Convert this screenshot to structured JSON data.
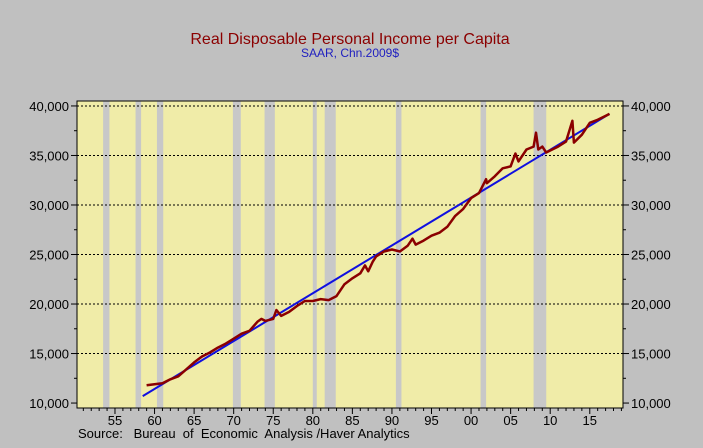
{
  "chart_data": {
    "type": "line",
    "title": "Real Disposable Personal Income per Capita",
    "subtitle": "SAAR, Chn.2009$",
    "source": "Source:   Bureau  of  Economic  Analysis /Haver Analytics",
    "colors": {
      "plot_background": "#f0eca8",
      "page_background": "#c0c0c0",
      "recession_band": "#c8c8c8",
      "income_line": "#8b0000",
      "trend_line": "#1010e0",
      "title": "#8b0000",
      "subtitle": "#2020c0"
    },
    "xlim": [
      1950.2,
      2019.2
    ],
    "ylim": [
      9500,
      40500
    ],
    "x_ticks": [
      1955,
      1960,
      1965,
      1970,
      1975,
      1980,
      1985,
      1990,
      1995,
      2000,
      2005,
      2010,
      2015
    ],
    "x_tick_labels": [
      "55",
      "60",
      "65",
      "70",
      "75",
      "80",
      "85",
      "90",
      "95",
      "00",
      "05",
      "10",
      "15"
    ],
    "y_ticks": [
      10000,
      15000,
      20000,
      25000,
      30000,
      35000,
      40000
    ],
    "y_tick_labels": [
      "10,000",
      "15,000",
      "20,000",
      "25,000",
      "30,000",
      "35,000",
      "40,000"
    ],
    "grid": "horizontal-dashed",
    "legend": "none",
    "recessions": [
      [
        1953.5,
        1954.3
      ],
      [
        1957.6,
        1958.3
      ],
      [
        1960.3,
        1961.1
      ],
      [
        1969.9,
        1970.9
      ],
      [
        1973.9,
        1975.2
      ],
      [
        1980.0,
        1980.5
      ],
      [
        1981.5,
        1982.9
      ],
      [
        1990.5,
        1991.2
      ],
      [
        2001.2,
        2001.9
      ],
      [
        2007.9,
        2009.5
      ]
    ],
    "series": [
      {
        "kind": "actual",
        "x": [
          1959.0,
          1960.0,
          1961.0,
          1962.0,
          1963.0,
          1964.0,
          1965.0,
          1966.0,
          1967.0,
          1968.0,
          1969.0,
          1970.0,
          1971.0,
          1972.0,
          1973.0,
          1973.5,
          1974.0,
          1975.0,
          1975.4,
          1976.0,
          1977.0,
          1978.0,
          1979.0,
          1980.0,
          1981.0,
          1982.0,
          1983.0,
          1984.0,
          1985.0,
          1986.0,
          1986.6,
          1987.0,
          1987.6,
          1988.0,
          1989.0,
          1990.0,
          1991.0,
          1992.0,
          1992.6,
          1993.0,
          1994.0,
          1995.0,
          1996.0,
          1997.0,
          1998.0,
          1999.0,
          2000.0,
          2001.0,
          2001.9,
          2002.0,
          2003.0,
          2004.0,
          2005.0,
          2005.6,
          2006.0,
          2007.0,
          2007.9,
          2008.2,
          2008.5,
          2009.0,
          2009.5,
          2010.0,
          2011.0,
          2012.0,
          2012.8,
          2013.0,
          2014.0,
          2015.0,
          2016.0,
          2017.0,
          2017.5
        ],
        "values": [
          11800,
          11900,
          12000,
          12400,
          12700,
          13400,
          14100,
          14700,
          15100,
          15600,
          16000,
          16500,
          17000,
          17300,
          18200,
          18500,
          18300,
          18500,
          19400,
          18800,
          19200,
          19800,
          20300,
          20300,
          20500,
          20400,
          20800,
          22000,
          22600,
          23100,
          23900,
          23300,
          24300,
          24800,
          25300,
          25500,
          25300,
          25900,
          26600,
          26000,
          26400,
          26900,
          27200,
          27800,
          28900,
          29600,
          30700,
          31200,
          32600,
          32200,
          32900,
          33700,
          33900,
          35200,
          34400,
          35600,
          35900,
          37300,
          35600,
          35900,
          35300,
          35500,
          35900,
          36400,
          38500,
          36300,
          37100,
          38300,
          38600,
          39000,
          39200
        ]
      },
      {
        "kind": "trend",
        "x": [
          1958.5,
          2017.5
        ],
        "values": [
          10700,
          39200
        ]
      }
    ]
  }
}
